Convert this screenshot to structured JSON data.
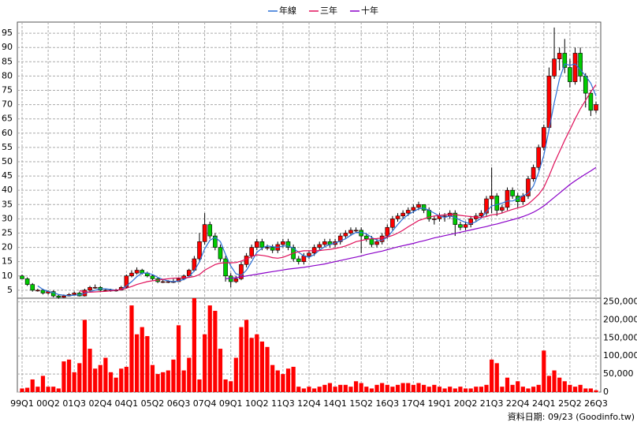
{
  "chart_data": [
    {
      "type": "candlestick",
      "up_color": "#ff0000",
      "down_color": "#00cc00",
      "grid": true,
      "open": [
        10,
        9,
        7,
        5,
        5,
        4,
        4.5,
        3,
        2.5,
        3,
        3.5,
        4,
        3,
        5,
        6,
        6,
        5,
        5,
        5,
        5,
        6,
        10,
        11,
        12,
        11,
        10,
        9,
        8,
        8,
        8,
        8,
        9,
        10,
        12,
        16,
        22,
        28,
        24,
        20,
        16,
        10,
        8,
        9,
        14,
        17,
        20,
        22,
        20,
        20,
        19,
        21,
        22,
        20,
        16,
        15,
        17,
        18,
        20,
        21,
        22,
        21,
        22,
        24,
        25,
        26,
        26,
        24,
        23,
        21,
        22,
        24,
        27,
        30,
        31,
        32,
        33,
        34,
        35,
        33,
        30,
        30,
        31,
        31,
        32,
        28,
        27,
        28,
        30,
        31,
        32,
        37,
        38,
        33,
        34,
        40,
        38,
        36,
        38,
        44,
        48,
        55,
        62,
        80,
        86,
        88,
        83,
        78,
        88,
        80,
        74,
        68
      ],
      "high": [
        10.5,
        9.5,
        7.5,
        5.5,
        5.5,
        5,
        5,
        3.5,
        3.5,
        4,
        4.5,
        4.5,
        5.5,
        6.5,
        7,
        6.5,
        5.5,
        5.5,
        5.5,
        6.5,
        10.5,
        12,
        13,
        12.5,
        11.5,
        10.5,
        9.5,
        9,
        8.5,
        9,
        9.5,
        10.5,
        12.5,
        17,
        25,
        32,
        29,
        25,
        21,
        17,
        11,
        10,
        15,
        18,
        21,
        23,
        23,
        21,
        21,
        22,
        23,
        23,
        21,
        17,
        18,
        19,
        21,
        22,
        23,
        23,
        23,
        25,
        26,
        27,
        27,
        27,
        25,
        24,
        23,
        25,
        28,
        31,
        32,
        33,
        34,
        35,
        36,
        35,
        34,
        31,
        32,
        32,
        33,
        33,
        29,
        29,
        31,
        32,
        33,
        38,
        48,
        39,
        35,
        41,
        41,
        39,
        39,
        45,
        49,
        56,
        63,
        83,
        97,
        90,
        93,
        86,
        90,
        90,
        81,
        75,
        71
      ],
      "low": [
        9,
        6.5,
        4.5,
        4.5,
        3.5,
        3.5,
        2.5,
        2,
        2.3,
        2.8,
        3.2,
        2.8,
        2.8,
        4.5,
        5.5,
        4.5,
        4.5,
        4.5,
        4.5,
        5,
        5.5,
        9.5,
        10.5,
        10.5,
        9.5,
        8.5,
        7.5,
        7.5,
        7.5,
        7.5,
        8,
        8.5,
        9.5,
        11.5,
        15,
        21,
        23,
        19,
        15,
        8,
        6,
        7.5,
        8.5,
        13,
        16,
        19,
        19,
        19,
        18,
        18,
        20,
        19,
        15,
        14,
        14,
        16,
        17,
        19,
        20,
        20,
        20,
        21,
        23,
        24,
        25,
        18,
        22,
        20,
        20,
        21,
        23,
        26,
        29,
        30,
        31,
        32,
        33,
        32,
        29,
        28,
        29,
        29,
        30,
        24,
        26,
        26,
        27,
        29,
        30,
        31,
        32,
        31,
        32,
        33,
        37,
        34,
        35,
        37,
        43,
        47,
        54,
        61,
        79,
        82,
        81,
        76,
        77,
        78,
        69,
        66,
        67
      ],
      "close": [
        9,
        7,
        5,
        5,
        4,
        4.5,
        3,
        2.5,
        3,
        3.5,
        4,
        3,
        5,
        6,
        6,
        5,
        5,
        5,
        5,
        6,
        10,
        11,
        12,
        11,
        10,
        9,
        8,
        8,
        8,
        8,
        9,
        10,
        12,
        16,
        22,
        28,
        24,
        20,
        16,
        10,
        8,
        9,
        14,
        17,
        20,
        22,
        20,
        20,
        19,
        21,
        22,
        20,
        16,
        15,
        17,
        18,
        20,
        21,
        22,
        21,
        22,
        24,
        25,
        26,
        26,
        24,
        23,
        21,
        22,
        24,
        27,
        30,
        31,
        32,
        33,
        34,
        35,
        33,
        30,
        30,
        31,
        31,
        32,
        28,
        27,
        28,
        30,
        31,
        32,
        37,
        38,
        33,
        34,
        40,
        38,
        36,
        38,
        44,
        48,
        55,
        62,
        80,
        86,
        88,
        83,
        78,
        88,
        80,
        74,
        68,
        70
      ],
      "series": [
        {
          "name": "年線",
          "color": "#2a6fd6",
          "values": [
            null,
            null,
            null,
            6.5,
            5.25,
            4.6,
            4.1,
            3.5,
            3.25,
            3.1,
            3.25,
            3.4,
            3.9,
            4.5,
            5,
            5.5,
            5.5,
            5.25,
            5,
            5.25,
            6.5,
            8,
            9.75,
            11,
            11,
            10.5,
            9.5,
            8.75,
            8.25,
            8,
            8.25,
            8.75,
            9.75,
            11.75,
            15,
            19.5,
            22.5,
            23.5,
            22,
            17.5,
            13.5,
            10.75,
            10.25,
            12,
            15,
            18.25,
            19.75,
            20.5,
            20.25,
            20,
            20.5,
            20.5,
            19.75,
            18.25,
            17,
            16.5,
            17.5,
            19,
            20.25,
            21,
            21.5,
            22.25,
            23,
            24.25,
            25.25,
            25.25,
            24.75,
            23.5,
            22.5,
            22.5,
            23.5,
            25.75,
            28,
            30,
            31.5,
            32.5,
            33.5,
            33.75,
            33,
            32,
            31,
            30.5,
            31,
            30.5,
            29.5,
            28.75,
            28.25,
            29,
            30.25,
            32.5,
            34.5,
            35,
            35.5,
            36.25,
            36.25,
            37,
            38,
            39,
            41.5,
            46.25,
            52.25,
            61.25,
            70.75,
            79,
            84.25,
            83.75,
            84.25,
            82.25,
            80,
            77.5,
            73
          ]
        },
        {
          "name": "三年",
          "color": "#e0105a",
          "values": [
            null,
            null,
            null,
            null,
            null,
            null,
            null,
            null,
            null,
            null,
            null,
            4.8,
            4.5,
            4.3,
            4.4,
            4.5,
            4.6,
            4.8,
            5,
            5.2,
            5.7,
            6.3,
            7,
            7.5,
            8,
            8.3,
            8.5,
            8.8,
            9,
            9.2,
            9.3,
            9.3,
            9.5,
            9.8,
            10.5,
            12,
            13,
            14,
            14.5,
            14.6,
            14.6,
            14.7,
            15.2,
            15.9,
            16.8,
            17.4,
            17.2,
            16.9,
            16.4,
            16.2,
            16.5,
            17.2,
            18,
            18.5,
            18.8,
            18.8,
            18.8,
            18.9,
            19.1,
            19.3,
            19.6,
            20,
            20.5,
            21.2,
            22,
            22.4,
            22.8,
            23,
            23.1,
            23.3,
            23.6,
            24.2,
            25,
            26,
            27.2,
            28.3,
            29.4,
            30,
            30.6,
            31,
            31.2,
            31.4,
            31.6,
            31.5,
            31.2,
            31,
            30.8,
            30.6,
            30.5,
            30.8,
            31.4,
            31.6,
            32,
            32.7,
            33.3,
            33.8,
            34.3,
            35.2,
            36.8,
            38.5,
            41,
            45,
            49.5,
            53.5,
            57.5,
            61.2,
            65,
            68.5,
            71.5,
            74.5,
            77
          ]
        },
        {
          "name": "十年",
          "color": "#8a00c8",
          "values": [
            null,
            null,
            null,
            null,
            null,
            null,
            null,
            null,
            null,
            null,
            null,
            null,
            null,
            null,
            null,
            null,
            null,
            null,
            null,
            null,
            null,
            null,
            null,
            null,
            null,
            null,
            null,
            null,
            null,
            null,
            null,
            null,
            null,
            null,
            null,
            null,
            null,
            null,
            null,
            9,
            9.2,
            9.4,
            9.7,
            10,
            10.3,
            10.6,
            10.9,
            11.2,
            11.5,
            11.8,
            12.1,
            12.4,
            12.6,
            12.8,
            13,
            13.3,
            13.6,
            13.9,
            14.2,
            14.6,
            15,
            15.4,
            15.8,
            16.2,
            16.6,
            17,
            17.5,
            17.9,
            18.3,
            18.7,
            19.2,
            19.7,
            20.2,
            20.6,
            21,
            21.4,
            21.9,
            22.3,
            22.8,
            23.3,
            23.7,
            24.1,
            24.5,
            24.9,
            25.3,
            25.7,
            26.1,
            26.5,
            26.9,
            27.3,
            27.8,
            28.2,
            28.7,
            29.2,
            29.7,
            30.2,
            30.8,
            31.5,
            32.3,
            33.3,
            34.5,
            36,
            37.5,
            39,
            40.5,
            42,
            43.3,
            44.5,
            45.7,
            46.8,
            48
          ]
        }
      ],
      "ylim": [
        2.2,
        98.9
      ],
      "yticks": [
        5,
        10,
        15,
        20,
        25,
        30,
        35,
        40,
        45,
        50,
        55,
        60,
        65,
        70,
        75,
        80,
        85,
        90,
        95
      ]
    },
    {
      "type": "bar",
      "color": "#ff0000",
      "grid": true,
      "annotation": "資料日期: 09/23 (Goodinfo.tw)",
      "categories": [
        "99Q1",
        null,
        null,
        null,
        null,
        "00Q2",
        null,
        null,
        null,
        null,
        "01Q3",
        null,
        null,
        null,
        null,
        "02Q4",
        null,
        null,
        null,
        null,
        "04Q1",
        null,
        null,
        null,
        null,
        "05Q2",
        null,
        null,
        null,
        null,
        "06Q3",
        null,
        null,
        null,
        null,
        "07Q4",
        null,
        null,
        null,
        null,
        "09Q1",
        null,
        null,
        null,
        null,
        "10Q2",
        null,
        null,
        null,
        null,
        "11Q3",
        null,
        null,
        null,
        null,
        "12Q4",
        null,
        null,
        null,
        null,
        "14Q1",
        null,
        null,
        null,
        null,
        "15Q2",
        null,
        null,
        null,
        null,
        "16Q3",
        null,
        null,
        null,
        null,
        "17Q4",
        null,
        null,
        null,
        null,
        "19Q1",
        null,
        null,
        null,
        null,
        "20Q2",
        null,
        null,
        null,
        null,
        "21Q3",
        null,
        null,
        null,
        null,
        "22Q4",
        null,
        null,
        null,
        null,
        "24Q1",
        null,
        null,
        null,
        null,
        "25Q2",
        null,
        null,
        null,
        null,
        "26Q3"
      ],
      "values": [
        10000,
        12000,
        35000,
        15000,
        45000,
        15000,
        15000,
        10000,
        85000,
        90000,
        55000,
        80000,
        200000,
        120000,
        65000,
        75000,
        95000,
        55000,
        40000,
        65000,
        70000,
        240000,
        160000,
        180000,
        155000,
        75000,
        50000,
        55000,
        60000,
        90000,
        185000,
        60000,
        95000,
        260000,
        35000,
        160000,
        240000,
        225000,
        120000,
        35000,
        30000,
        95000,
        180000,
        200000,
        150000,
        160000,
        140000,
        125000,
        75000,
        60000,
        50000,
        65000,
        70000,
        15000,
        10000,
        15000,
        10000,
        15000,
        20000,
        25000,
        15000,
        20000,
        20000,
        15000,
        30000,
        25000,
        15000,
        10000,
        20000,
        25000,
        20000,
        15000,
        20000,
        25000,
        25000,
        20000,
        25000,
        20000,
        15000,
        20000,
        15000,
        10000,
        15000,
        10000,
        15000,
        10000,
        10000,
        15000,
        15000,
        20000,
        90000,
        80000,
        15000,
        40000,
        20000,
        30000,
        15000,
        10000,
        15000,
        20000,
        115000,
        45000,
        60000,
        40000,
        30000,
        20000,
        15000,
        20000,
        10000,
        10000,
        5000
      ],
      "ylim": [
        0,
        260000
      ],
      "yticks": [
        0,
        {
          "value": 50000,
          "label": "50,000"
        },
        {
          "value": 100000,
          "label": "100,000"
        },
        {
          "value": 150000,
          "label": "150,000"
        },
        {
          "value": 200000,
          "label": "200,000"
        },
        {
          "value": 250000,
          "label": "250,000"
        }
      ]
    }
  ]
}
